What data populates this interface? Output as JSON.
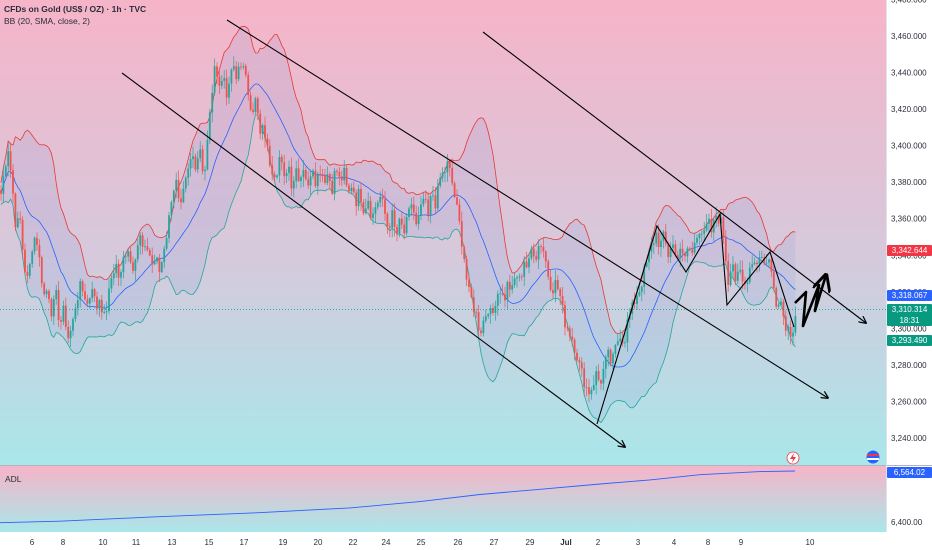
{
  "header": {
    "instrument": "CFDs on Gold (US$ / OZ) · 1h · TVC",
    "indicator": "BB (20, SMA, close, 2)"
  },
  "adl_panel": {
    "label": "ADL",
    "value_tag": "6,564.02",
    "ticks": [
      "6,400.00"
    ]
  },
  "price_tags": {
    "upper_band": "3,342.644",
    "middle_band": "3,318.067",
    "last_price": "3,310.314",
    "countdown": "18:31",
    "lower_band": "3,293.490"
  },
  "colors": {
    "up_candle": "#26a69a",
    "down_candle": "#ef5350",
    "upper_band": "#e53935",
    "basis": "#2962ff",
    "lower_band": "#26a69a",
    "upper_tag": "#f23645",
    "middle_tag": "#2962ff",
    "price_tag": "#089981",
    "lower_tag": "#089981",
    "bg_top": "#f6b4c8",
    "bg_bottom": "#a9e7ea"
  },
  "chart_data": {
    "type": "candlestick",
    "title": "",
    "xlabel": "",
    "ylabel": "",
    "ylim": [
      3223,
      3478
    ],
    "grid": false,
    "y_ticks": [
      "3,240.000",
      "3,260.000",
      "3,280.000",
      "3,300.000",
      "3,320.000",
      "3,340.000",
      "3,360.000",
      "3,380.000",
      "3,400.000",
      "3,420.000",
      "3,440.000",
      "3,460.000",
      "3,480.000"
    ],
    "x_ticks": [
      "6",
      "8",
      "10",
      "11",
      "13",
      "15",
      "17",
      "19",
      "20",
      "22",
      "24",
      "25",
      "26",
      "27",
      "29",
      "Jul",
      "2",
      "3",
      "4",
      "8",
      "9",
      "10"
    ],
    "close_path": [
      [
        0,
        3370
      ],
      [
        4,
        3385
      ],
      [
        8,
        3400
      ],
      [
        12,
        3380
      ],
      [
        16,
        3355
      ],
      [
        20,
        3360
      ],
      [
        24,
        3335
      ],
      [
        28,
        3325
      ],
      [
        32,
        3345
      ],
      [
        36,
        3352
      ],
      [
        40,
        3335
      ],
      [
        44,
        3318
      ],
      [
        48,
        3322
      ],
      [
        52,
        3308
      ],
      [
        56,
        3318
      ],
      [
        60,
        3302
      ],
      [
        64,
        3310
      ],
      [
        68,
        3295
      ],
      [
        72,
        3300
      ],
      [
        76,
        3315
      ],
      [
        80,
        3322
      ],
      [
        84,
        3320
      ],
      [
        88,
        3312
      ],
      [
        92,
        3325
      ],
      [
        96,
        3310
      ],
      [
        100,
        3318
      ],
      [
        104,
        3305
      ],
      [
        108,
        3315
      ],
      [
        112,
        3330
      ],
      [
        116,
        3335
      ],
      [
        120,
        3325
      ],
      [
        124,
        3340
      ],
      [
        128,
        3345
      ],
      [
        132,
        3332
      ],
      [
        136,
        3343
      ],
      [
        140,
        3350
      ],
      [
        144,
        3340
      ],
      [
        148,
        3345
      ],
      [
        152,
        3335
      ],
      [
        156,
        3338
      ],
      [
        160,
        3330
      ],
      [
        164,
        3345
      ],
      [
        168,
        3355
      ],
      [
        172,
        3375
      ],
      [
        176,
        3380
      ],
      [
        180,
        3362
      ],
      [
        184,
        3375
      ],
      [
        188,
        3385
      ],
      [
        192,
        3395
      ],
      [
        196,
        3390
      ],
      [
        200,
        3400
      ],
      [
        204,
        3382
      ],
      [
        208,
        3405
      ],
      [
        212,
        3430
      ],
      [
        216,
        3445
      ],
      [
        220,
        3432
      ],
      [
        224,
        3438
      ],
      [
        228,
        3425
      ],
      [
        232,
        3445
      ],
      [
        236,
        3435
      ],
      [
        240,
        3448
      ],
      [
        244,
        3440
      ],
      [
        248,
        3430
      ],
      [
        252,
        3420
      ],
      [
        256,
        3425
      ],
      [
        260,
        3405
      ],
      [
        264,
        3410
      ],
      [
        268,
        3395
      ],
      [
        272,
        3388
      ],
      [
        276,
        3385
      ],
      [
        280,
        3395
      ],
      [
        284,
        3380
      ],
      [
        288,
        3392
      ],
      [
        292,
        3378
      ],
      [
        296,
        3388
      ],
      [
        300,
        3382
      ],
      [
        304,
        3390
      ],
      [
        308,
        3375
      ],
      [
        312,
        3392
      ],
      [
        316,
        3380
      ],
      [
        320,
        3388
      ],
      [
        324,
        3382
      ],
      [
        328,
        3385
      ],
      [
        332,
        3377
      ],
      [
        336,
        3388
      ],
      [
        340,
        3380
      ],
      [
        344,
        3385
      ],
      [
        348,
        3372
      ],
      [
        352,
        3380
      ],
      [
        356,
        3370
      ],
      [
        360,
        3375
      ],
      [
        364,
        3365
      ],
      [
        368,
        3372
      ],
      [
        372,
        3360
      ],
      [
        376,
        3368
      ],
      [
        380,
        3372
      ],
      [
        384,
        3365
      ],
      [
        388,
        3355
      ],
      [
        392,
        3362
      ],
      [
        396,
        3350
      ],
      [
        400,
        3358
      ],
      [
        404,
        3352
      ],
      [
        408,
        3360
      ],
      [
        412,
        3370
      ],
      [
        416,
        3355
      ],
      [
        420,
        3362
      ],
      [
        424,
        3372
      ],
      [
        428,
        3360
      ],
      [
        432,
        3375
      ],
      [
        436,
        3368
      ],
      [
        440,
        3382
      ],
      [
        444,
        3385
      ],
      [
        448,
        3390
      ],
      [
        452,
        3380
      ],
      [
        456,
        3368
      ],
      [
        460,
        3355
      ],
      [
        464,
        3340
      ],
      [
        468,
        3320
      ],
      [
        472,
        3315
      ],
      [
        476,
        3308
      ],
      [
        480,
        3298
      ],
      [
        484,
        3305
      ],
      [
        488,
        3312
      ],
      [
        492,
        3305
      ],
      [
        496,
        3318
      ],
      [
        500,
        3322
      ],
      [
        504,
        3315
      ],
      [
        508,
        3325
      ],
      [
        512,
        3320
      ],
      [
        516,
        3330
      ],
      [
        520,
        3325
      ],
      [
        524,
        3338
      ],
      [
        528,
        3332
      ],
      [
        532,
        3345
      ],
      [
        536,
        3340
      ],
      [
        540,
        3348
      ],
      [
        544,
        3342
      ],
      [
        548,
        3330
      ],
      [
        552,
        3322
      ],
      [
        556,
        3325
      ],
      [
        560,
        3318
      ],
      [
        564,
        3305
      ],
      [
        568,
        3300
      ],
      [
        572,
        3295
      ],
      [
        576,
        3288
      ],
      [
        580,
        3278
      ],
      [
        584,
        3272
      ],
      [
        588,
        3265
      ],
      [
        592,
        3268
      ],
      [
        596,
        3275
      ],
      [
        600,
        3270
      ],
      [
        604,
        3278
      ],
      [
        608,
        3285
      ],
      [
        612,
        3280
      ],
      [
        616,
        3290
      ],
      [
        620,
        3298
      ],
      [
        624,
        3292
      ],
      [
        628,
        3305
      ],
      [
        632,
        3310
      ],
      [
        636,
        3318
      ],
      [
        640,
        3322
      ],
      [
        644,
        3330
      ],
      [
        648,
        3338
      ],
      [
        652,
        3345
      ],
      [
        656,
        3352
      ],
      [
        660,
        3345
      ],
      [
        664,
        3350
      ],
      [
        668,
        3340
      ],
      [
        672,
        3348
      ],
      [
        676,
        3338
      ],
      [
        680,
        3345
      ],
      [
        684,
        3335
      ],
      [
        688,
        3345
      ],
      [
        692,
        3340
      ],
      [
        696,
        3352
      ],
      [
        700,
        3355
      ],
      [
        704,
        3350
      ],
      [
        708,
        3358
      ],
      [
        712,
        3352
      ],
      [
        716,
        3362
      ],
      [
        720,
        3360
      ],
      [
        724,
        3350
      ],
      [
        728,
        3325
      ],
      [
        732,
        3340
      ],
      [
        736,
        3325
      ],
      [
        740,
        3330
      ],
      [
        744,
        3322
      ],
      [
        748,
        3330
      ],
      [
        752,
        3338
      ],
      [
        756,
        3335
      ],
      [
        760,
        3342
      ],
      [
        764,
        3335
      ],
      [
        768,
        3340
      ],
      [
        772,
        3328
      ],
      [
        776,
        3315
      ],
      [
        780,
        3318
      ],
      [
        784,
        3305
      ],
      [
        788,
        3300
      ],
      [
        792,
        3298
      ],
      [
        796,
        3310
      ]
    ],
    "series": [
      {
        "name": "BB (20, SMA, close, 2)",
        "values": [
          "upper",
          "basis",
          "lower"
        ]
      }
    ],
    "adl_path": [
      [
        0,
        6397
      ],
      [
        60,
        6402
      ],
      [
        150,
        6415
      ],
      [
        250,
        6428
      ],
      [
        350,
        6445
      ],
      [
        420,
        6465
      ],
      [
        480,
        6488
      ],
      [
        540,
        6505
      ],
      [
        600,
        6522
      ],
      [
        650,
        6535
      ],
      [
        700,
        6552
      ],
      [
        760,
        6562
      ],
      [
        795,
        6564
      ]
    ]
  }
}
